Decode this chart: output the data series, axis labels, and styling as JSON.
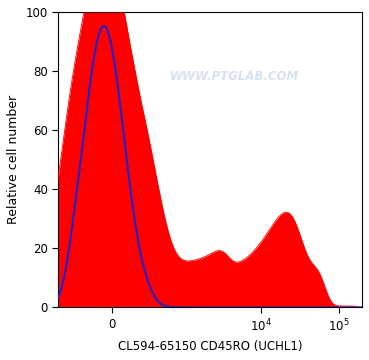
{
  "ylabel": "Relative cell number",
  "xlabel": "CL594-65150 CD45RO (UCHL1)",
  "ylim": [
    0,
    100
  ],
  "watermark": "WWW.PTGLAB.COM",
  "watermark_color": "#b8cfe8",
  "watermark_alpha": 0.6,
  "bg_color": "#ffffff",
  "plot_bg_color": "#ffffff",
  "blue_color": "#2222cc",
  "red_color": "#ff0000",
  "yticks": [
    0,
    20,
    40,
    60,
    80,
    100
  ],
  "linthresh": 300,
  "linscale": 0.35
}
